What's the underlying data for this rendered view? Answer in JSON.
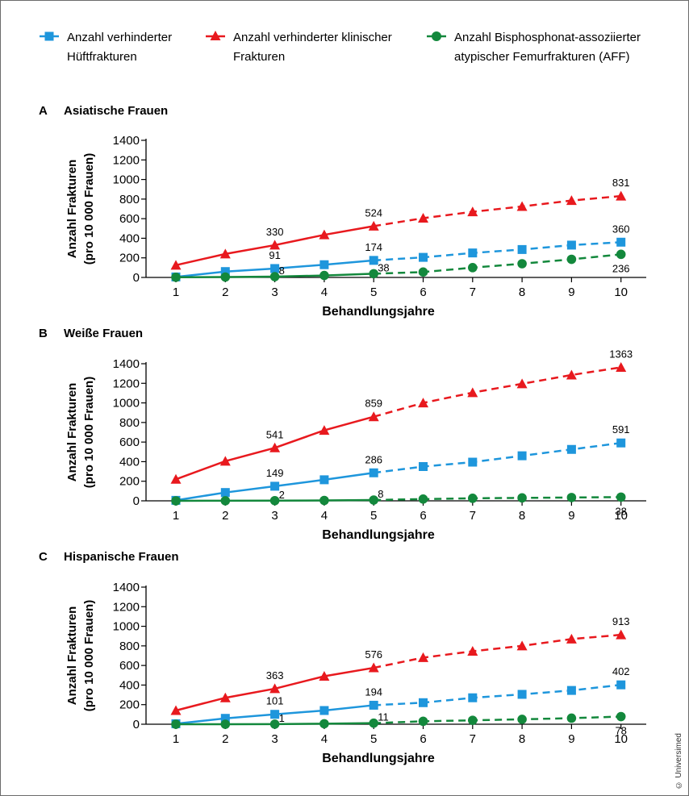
{
  "legend": [
    {
      "label": "Anzahl verhinderter Hüftfrakturen",
      "color": "#1e96dc",
      "marker": "square"
    },
    {
      "label": "Anzahl verhinderter klinischer Frakturen",
      "color": "#e8191e",
      "marker": "triangle"
    },
    {
      "label": "Anzahl Bisphosphonat-assoziierter atypischer Femurfrakturen (AFF)",
      "color": "#13883c",
      "marker": "circle"
    }
  ],
  "chart_data": [
    {
      "type": "line",
      "panel": "A",
      "title": "Asiatische Frauen",
      "xlabel": "Behandlungsjahre",
      "ylabel": [
        "Anzahl Frakturen",
        "(pro 10 000 Frauen)"
      ],
      "x": [
        1,
        2,
        3,
        4,
        5,
        6,
        7,
        8,
        9,
        10
      ],
      "ylim": [
        0,
        1400
      ],
      "yticks": [
        0,
        200,
        400,
        600,
        800,
        1000,
        1200,
        1400
      ],
      "solid_until_x": 5,
      "series": [
        {
          "name": "Anzahl verhinderter Hüftfrakturen",
          "values": [
            5,
            60,
            91,
            130,
            174,
            205,
            250,
            285,
            330,
            360
          ],
          "labels": [
            {
              "x": 3,
              "text": "91"
            },
            {
              "x": 5,
              "text": "174"
            },
            {
              "x": 10,
              "text": "360"
            }
          ]
        },
        {
          "name": "Anzahl verhinderter klinischer Frakturen",
          "values": [
            125,
            240,
            330,
            435,
            524,
            605,
            670,
            725,
            785,
            831
          ],
          "labels": [
            {
              "x": 3,
              "text": "330"
            },
            {
              "x": 5,
              "text": "524"
            },
            {
              "x": 10,
              "text": "831"
            }
          ]
        },
        {
          "name": "Anzahl Bisphosphonat-assoziierter atypischer Femurfrakturen (AFF)",
          "values": [
            2,
            4,
            8,
            20,
            38,
            55,
            100,
            140,
            185,
            236
          ],
          "labels": [
            {
              "x": 3,
              "text": "8"
            },
            {
              "x": 5,
              "text": "38"
            },
            {
              "x": 10,
              "text": "236"
            }
          ]
        }
      ]
    },
    {
      "type": "line",
      "panel": "B",
      "title": "Weiße Frauen",
      "xlabel": "Behandlungsjahre",
      "ylabel": [
        "Anzahl Frakturen",
        "(pro 10 000 Frauen)"
      ],
      "x": [
        1,
        2,
        3,
        4,
        5,
        6,
        7,
        8,
        9,
        10
      ],
      "ylim": [
        0,
        1400
      ],
      "yticks": [
        0,
        200,
        400,
        600,
        800,
        1000,
        1200,
        1400
      ],
      "solid_until_x": 5,
      "series": [
        {
          "name": "Anzahl verhinderter Hüftfrakturen",
          "values": [
            5,
            85,
            149,
            215,
            286,
            350,
            395,
            460,
            525,
            591
          ],
          "labels": [
            {
              "x": 3,
              "text": "149"
            },
            {
              "x": 5,
              "text": "286"
            },
            {
              "x": 10,
              "text": "591"
            }
          ]
        },
        {
          "name": "Anzahl verhinderter klinischer Frakturen",
          "values": [
            220,
            405,
            541,
            720,
            859,
            1000,
            1105,
            1195,
            1285,
            1363
          ],
          "labels": [
            {
              "x": 3,
              "text": "541"
            },
            {
              "x": 5,
              "text": "859"
            },
            {
              "x": 10,
              "text": "1363"
            }
          ]
        },
        {
          "name": "Anzahl Bisphosphonat-assoziierter atypischer Femurfrakturen (AFF)",
          "values": [
            0,
            1,
            2,
            4,
            8,
            18,
            26,
            30,
            34,
            38
          ],
          "labels": [
            {
              "x": 3,
              "text": "2"
            },
            {
              "x": 5,
              "text": "8"
            },
            {
              "x": 10,
              "text": "38"
            }
          ]
        }
      ]
    },
    {
      "type": "line",
      "panel": "C",
      "title": "Hispanische Frauen",
      "xlabel": "Behandlungsjahre",
      "ylabel": [
        "Anzahl Frakturen",
        "(pro 10 000 Frauen)"
      ],
      "x": [
        1,
        2,
        3,
        4,
        5,
        6,
        7,
        8,
        9,
        10
      ],
      "ylim": [
        0,
        1400
      ],
      "yticks": [
        0,
        200,
        400,
        600,
        800,
        1000,
        1200,
        1400
      ],
      "solid_until_x": 5,
      "series": [
        {
          "name": "Anzahl verhinderter Hüftfrakturen",
          "values": [
            5,
            60,
            101,
            140,
            194,
            220,
            270,
            305,
            345,
            402
          ],
          "labels": [
            {
              "x": 3,
              "text": "101"
            },
            {
              "x": 5,
              "text": "194"
            },
            {
              "x": 10,
              "text": "402"
            }
          ]
        },
        {
          "name": "Anzahl verhinderter klinischer Frakturen",
          "values": [
            140,
            270,
            363,
            490,
            576,
            680,
            745,
            800,
            870,
            913
          ],
          "labels": [
            {
              "x": 3,
              "text": "363"
            },
            {
              "x": 5,
              "text": "576"
            },
            {
              "x": 10,
              "text": "913"
            }
          ]
        },
        {
          "name": "Anzahl Bisphosphonat-assoziierter atypischer Femurfrakturen (AFF)",
          "values": [
            0,
            0,
            1,
            5,
            11,
            30,
            40,
            50,
            62,
            78
          ],
          "labels": [
            {
              "x": 3,
              "text": "1"
            },
            {
              "x": 5,
              "text": "11"
            },
            {
              "x": 10,
              "text": "78"
            }
          ]
        }
      ]
    }
  ],
  "copyright": "© Universimed"
}
